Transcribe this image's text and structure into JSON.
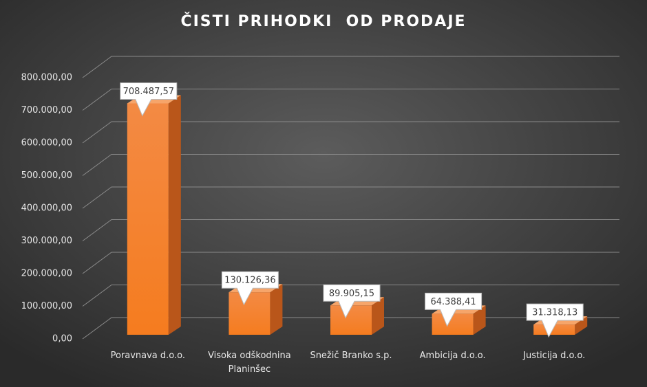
{
  "chart_data": {
    "type": "bar",
    "title": "ČISTI PRIHODKI  OD PRODAJE",
    "categories": [
      "Poravnava d.o.o.",
      "Visoka odškodnina Planinšec",
      "Snežič Branko s.p.",
      "Ambicija d.o.o.",
      "Justicija d.o.o."
    ],
    "values": [
      708487.57,
      130126.36,
      89905.15,
      64388.41,
      31318.13
    ],
    "value_labels": [
      "708.487,57",
      "130.126,36",
      "89.905,15",
      "64.388,41",
      "31.318,13"
    ],
    "color": "#f07d2c",
    "ylim": [
      0,
      800000
    ],
    "yticks": [
      {
        "value": 0,
        "label": "0,00"
      },
      {
        "value": 100000,
        "label": "100.000,00"
      },
      {
        "value": 200000,
        "label": "200.000,00"
      },
      {
        "value": 300000,
        "label": "300.000,00"
      },
      {
        "value": 400000,
        "label": "400.000,00"
      },
      {
        "value": 500000,
        "label": "500.000,00"
      },
      {
        "value": 600000,
        "label": "600.000,00"
      },
      {
        "value": 700000,
        "label": "700.000,00"
      },
      {
        "value": 800000,
        "label": "800.000,00"
      }
    ],
    "grid": true
  }
}
